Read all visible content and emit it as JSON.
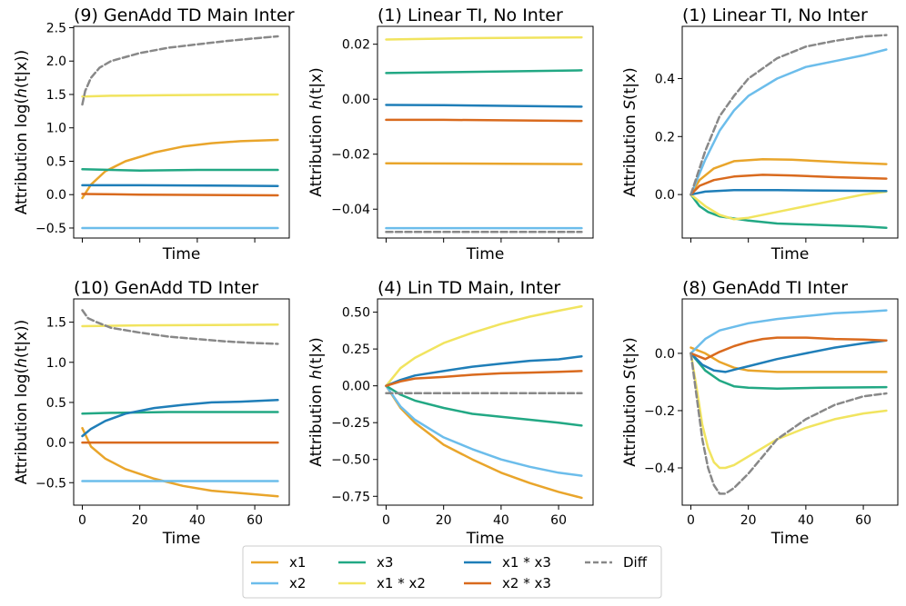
{
  "colors": {
    "x1": "#E9A52B",
    "x2": "#6CBDEB",
    "x3": "#22A884",
    "x1*x2": "#F1E45F",
    "x1*x3": "#1F7EB8",
    "x2*x3": "#D96A1E",
    "Diff": "#888888"
  },
  "legend": {
    "items": [
      {
        "key": "x1",
        "label": "x1",
        "dashed": false
      },
      {
        "key": "x2",
        "label": "x2",
        "dashed": false
      },
      {
        "key": "x3",
        "label": "x3",
        "dashed": false
      },
      {
        "key": "x1*x2",
        "label": "x1 * x2",
        "dashed": false
      },
      {
        "key": "x1*x3",
        "label": "x1 * x3",
        "dashed": false
      },
      {
        "key": "x2*x3",
        "label": "x2 * x3",
        "dashed": false
      },
      {
        "key": "Diff",
        "label": "Diff",
        "dashed": true
      }
    ]
  },
  "chart_data": [
    {
      "type": "line",
      "title": "(9) GenAdd TD Main Inter",
      "xlabel": "Time",
      "ylabel": "Attribution log(h(t|x))",
      "xlim": [
        -3,
        72
      ],
      "ylim": [
        -0.65,
        2.52
      ],
      "xticks": [
        0,
        20,
        40,
        60
      ],
      "show_xticklabels": false,
      "yticks": [
        -0.5,
        0.0,
        0.5,
        1.0,
        1.5,
        2.0,
        2.5
      ],
      "ytick_labels": [
        "−0.5",
        "0.0",
        "0.5",
        "1.0",
        "1.5",
        "2.0",
        "2.5"
      ],
      "series": [
        {
          "name": "x1",
          "x": [
            0,
            3,
            8,
            15,
            25,
            35,
            45,
            55,
            68
          ],
          "y": [
            -0.05,
            0.15,
            0.35,
            0.5,
            0.63,
            0.72,
            0.77,
            0.8,
            0.82
          ]
        },
        {
          "name": "x2",
          "x": [
            0,
            68
          ],
          "y": [
            -0.5,
            -0.5
          ]
        },
        {
          "name": "x3",
          "x": [
            0,
            10,
            20,
            40,
            68
          ],
          "y": [
            0.38,
            0.37,
            0.36,
            0.37,
            0.37
          ]
        },
        {
          "name": "x1*x2",
          "x": [
            0,
            10,
            30,
            68
          ],
          "y": [
            1.47,
            1.48,
            1.49,
            1.5
          ]
        },
        {
          "name": "x1*x3",
          "x": [
            0,
            20,
            68
          ],
          "y": [
            0.14,
            0.14,
            0.13
          ]
        },
        {
          "name": "x2*x3",
          "x": [
            0,
            20,
            68
          ],
          "y": [
            0.01,
            0.0,
            -0.01
          ]
        },
        {
          "name": "Diff",
          "x": [
            0,
            1,
            3,
            6,
            10,
            20,
            30,
            40,
            50,
            60,
            68
          ],
          "y": [
            1.35,
            1.55,
            1.75,
            1.9,
            2.0,
            2.12,
            2.2,
            2.25,
            2.3,
            2.34,
            2.37
          ]
        }
      ]
    },
    {
      "type": "line",
      "title": "(1) Linear TI, No Inter",
      "xlabel": "Time",
      "ylabel": "Attribution h(t|x)",
      "xlim": [
        -3,
        72
      ],
      "ylim": [
        -0.0505,
        0.0265
      ],
      "xticks": [
        0,
        20,
        40,
        60
      ],
      "show_xticklabels": false,
      "yticks": [
        -0.04,
        -0.02,
        0.0,
        0.02
      ],
      "ytick_labels": [
        "−0.04",
        "−0.02",
        "0.00",
        "0.02"
      ],
      "series": [
        {
          "name": "x1",
          "x": [
            0,
            68
          ],
          "y": [
            -0.0233,
            -0.0236
          ]
        },
        {
          "name": "x2",
          "x": [
            0,
            68
          ],
          "y": [
            -0.0469,
            -0.0469
          ]
        },
        {
          "name": "x3",
          "x": [
            0,
            20,
            68
          ],
          "y": [
            0.0095,
            0.0098,
            0.0105
          ]
        },
        {
          "name": "x1*x2",
          "x": [
            0,
            30,
            68
          ],
          "y": [
            0.0217,
            0.0222,
            0.0225
          ]
        },
        {
          "name": "x1*x3",
          "x": [
            0,
            20,
            68
          ],
          "y": [
            -0.0021,
            -0.0022,
            -0.0027
          ]
        },
        {
          "name": "x2*x3",
          "x": [
            0,
            20,
            68
          ],
          "y": [
            -0.0075,
            -0.0075,
            -0.0079
          ]
        },
        {
          "name": "Diff",
          "x": [
            0,
            68
          ],
          "y": [
            -0.0483,
            -0.0483
          ]
        }
      ]
    },
    {
      "type": "line",
      "title": "(1) Linear TI, No Inter",
      "xlabel": "Time",
      "ylabel": "Attribution S(t|x)",
      "xlim": [
        -3,
        72
      ],
      "ylim": [
        -0.15,
        0.58
      ],
      "xticks": [
        0,
        20,
        40,
        60
      ],
      "show_xticklabels": false,
      "yticks": [
        0.0,
        0.2,
        0.4
      ],
      "ytick_labels": [
        "0.0",
        "0.2",
        "0.4"
      ],
      "series": [
        {
          "name": "x1",
          "x": [
            0,
            3,
            8,
            15,
            25,
            35,
            45,
            55,
            68
          ],
          "y": [
            0.0,
            0.05,
            0.09,
            0.115,
            0.122,
            0.12,
            0.115,
            0.11,
            0.105
          ]
        },
        {
          "name": "x2",
          "x": [
            0,
            5,
            10,
            15,
            20,
            30,
            40,
            50,
            60,
            68
          ],
          "y": [
            0.0,
            0.12,
            0.22,
            0.29,
            0.34,
            0.4,
            0.44,
            0.46,
            0.48,
            0.5
          ]
        },
        {
          "name": "x3",
          "x": [
            0,
            3,
            6,
            10,
            20,
            30,
            45,
            60,
            68
          ],
          "y": [
            0.0,
            -0.04,
            -0.06,
            -0.075,
            -0.09,
            -0.1,
            -0.105,
            -0.11,
            -0.115
          ]
        },
        {
          "name": "x1*x2",
          "x": [
            0,
            5,
            10,
            15,
            20,
            30,
            45,
            60,
            68
          ],
          "y": [
            0.0,
            -0.04,
            -0.07,
            -0.085,
            -0.08,
            -0.06,
            -0.03,
            0.0,
            0.01
          ]
        },
        {
          "name": "x1*x3",
          "x": [
            0,
            5,
            15,
            30,
            68
          ],
          "y": [
            0.0,
            0.01,
            0.015,
            0.015,
            0.012
          ]
        },
        {
          "name": "x2*x3",
          "x": [
            0,
            3,
            8,
            15,
            25,
            35,
            50,
            68
          ],
          "y": [
            0.0,
            0.03,
            0.05,
            0.062,
            0.068,
            0.066,
            0.06,
            0.055
          ]
        },
        {
          "name": "Diff",
          "x": [
            0,
            5,
            10,
            15,
            20,
            30,
            40,
            50,
            60,
            68
          ],
          "y": [
            0.0,
            0.15,
            0.27,
            0.34,
            0.4,
            0.47,
            0.51,
            0.53,
            0.545,
            0.55
          ]
        }
      ]
    },
    {
      "type": "line",
      "title": "(10) GenAdd TD Inter",
      "xlabel": "Time",
      "ylabel": "Attribution log(h(t|x))",
      "xlim": [
        -3,
        72
      ],
      "ylim": [
        -0.78,
        1.79
      ],
      "xticks": [
        0,
        20,
        40,
        60
      ],
      "show_xticklabels": true,
      "xtick_labels": [
        "0",
        "20",
        "40",
        "60"
      ],
      "yticks": [
        -0.5,
        0.0,
        0.5,
        1.0,
        1.5
      ],
      "ytick_labels": [
        "−0.5",
        "0.0",
        "0.5",
        "1.0",
        "1.5"
      ],
      "series": [
        {
          "name": "x1",
          "x": [
            0,
            3,
            8,
            15,
            25,
            35,
            45,
            55,
            68
          ],
          "y": [
            0.18,
            -0.05,
            -0.2,
            -0.33,
            -0.45,
            -0.54,
            -0.6,
            -0.63,
            -0.67
          ]
        },
        {
          "name": "x2",
          "x": [
            0,
            68
          ],
          "y": [
            -0.48,
            -0.48
          ]
        },
        {
          "name": "x3",
          "x": [
            0,
            10,
            30,
            68
          ],
          "y": [
            0.36,
            0.37,
            0.38,
            0.38
          ]
        },
        {
          "name": "x1*x2",
          "x": [
            0,
            20,
            68
          ],
          "y": [
            1.45,
            1.46,
            1.47
          ]
        },
        {
          "name": "x1*x3",
          "x": [
            0,
            3,
            8,
            15,
            25,
            35,
            45,
            55,
            68
          ],
          "y": [
            0.08,
            0.17,
            0.27,
            0.36,
            0.43,
            0.47,
            0.5,
            0.51,
            0.53
          ]
        },
        {
          "name": "x2*x3",
          "x": [
            0,
            68
          ],
          "y": [
            0.0,
            0.0
          ]
        },
        {
          "name": "Diff",
          "x": [
            0,
            2,
            5,
            10,
            20,
            30,
            40,
            50,
            60,
            68
          ],
          "y": [
            1.65,
            1.55,
            1.5,
            1.43,
            1.37,
            1.32,
            1.29,
            1.26,
            1.24,
            1.23
          ]
        }
      ]
    },
    {
      "type": "line",
      "title": "(4) Lin TD Main, Inter",
      "xlabel": "Time",
      "ylabel": "Attribution h(t|x)",
      "xlim": [
        -3,
        72
      ],
      "ylim": [
        -0.81,
        0.59
      ],
      "xticks": [
        0,
        20,
        40,
        60
      ],
      "show_xticklabels": true,
      "xtick_labels": [
        "0",
        "20",
        "40",
        "60"
      ],
      "yticks": [
        -0.75,
        -0.5,
        -0.25,
        0.0,
        0.25,
        0.5
      ],
      "ytick_labels": [
        "−0.75",
        "−0.50",
        "−0.25",
        "0.00",
        "0.25",
        "0.50"
      ],
      "series": [
        {
          "name": "x1",
          "x": [
            0,
            5,
            10,
            20,
            30,
            40,
            50,
            60,
            68
          ],
          "y": [
            0.0,
            -0.15,
            -0.25,
            -0.4,
            -0.5,
            -0.59,
            -0.66,
            -0.72,
            -0.76
          ]
        },
        {
          "name": "x2",
          "x": [
            0,
            5,
            10,
            20,
            30,
            40,
            50,
            60,
            68
          ],
          "y": [
            0.0,
            -0.14,
            -0.23,
            -0.35,
            -0.43,
            -0.5,
            -0.55,
            -0.59,
            -0.61
          ]
        },
        {
          "name": "x3",
          "x": [
            0,
            5,
            10,
            20,
            30,
            40,
            50,
            60,
            68
          ],
          "y": [
            0.0,
            -0.06,
            -0.1,
            -0.15,
            -0.19,
            -0.21,
            -0.23,
            -0.25,
            -0.27
          ]
        },
        {
          "name": "x1*x2",
          "x": [
            0,
            5,
            10,
            20,
            30,
            40,
            50,
            60,
            68
          ],
          "y": [
            0.0,
            0.12,
            0.19,
            0.29,
            0.36,
            0.42,
            0.47,
            0.51,
            0.54
          ]
        },
        {
          "name": "x1*x3",
          "x": [
            0,
            5,
            10,
            20,
            30,
            40,
            50,
            60,
            68
          ],
          "y": [
            0.0,
            0.04,
            0.07,
            0.1,
            0.13,
            0.15,
            0.17,
            0.18,
            0.2
          ]
        },
        {
          "name": "x2*x3",
          "x": [
            0,
            5,
            10,
            20,
            30,
            40,
            50,
            60,
            68
          ],
          "y": [
            0.0,
            0.03,
            0.05,
            0.06,
            0.075,
            0.085,
            0.09,
            0.095,
            0.1
          ]
        },
        {
          "name": "Diff",
          "x": [
            0,
            68
          ],
          "y": [
            -0.05,
            -0.05
          ]
        }
      ]
    },
    {
      "type": "line",
      "title": "(8) GenAdd TI Inter",
      "xlabel": "Time",
      "ylabel": "Attribution S(t|x)",
      "xlim": [
        -3,
        72
      ],
      "ylim": [
        -0.53,
        0.19
      ],
      "xticks": [
        0,
        20,
        40,
        60
      ],
      "show_xticklabels": true,
      "xtick_labels": [
        "0",
        "20",
        "40",
        "60"
      ],
      "yticks": [
        -0.4,
        -0.2,
        0.0
      ],
      "ytick_labels": [
        "−0.4",
        "−0.2",
        "0.0"
      ],
      "series": [
        {
          "name": "x1",
          "x": [
            0,
            5,
            10,
            15,
            20,
            30,
            45,
            68
          ],
          "y": [
            0.02,
            0.0,
            -0.03,
            -0.05,
            -0.06,
            -0.065,
            -0.065,
            -0.065
          ]
        },
        {
          "name": "x2",
          "x": [
            0,
            5,
            10,
            20,
            30,
            40,
            50,
            60,
            68
          ],
          "y": [
            0.0,
            0.05,
            0.08,
            0.105,
            0.12,
            0.13,
            0.14,
            0.145,
            0.15
          ]
        },
        {
          "name": "x3",
          "x": [
            0,
            5,
            10,
            15,
            20,
            30,
            45,
            68
          ],
          "y": [
            0.0,
            -0.06,
            -0.095,
            -0.115,
            -0.12,
            -0.123,
            -0.12,
            -0.118
          ]
        },
        {
          "name": "x1*x2",
          "x": [
            0,
            2,
            4,
            6,
            8,
            10,
            12,
            15,
            20,
            25,
            30,
            40,
            50,
            60,
            68
          ],
          "y": [
            0.0,
            -0.12,
            -0.25,
            -0.33,
            -0.38,
            -0.4,
            -0.4,
            -0.39,
            -0.36,
            -0.33,
            -0.3,
            -0.26,
            -0.23,
            -0.21,
            -0.2
          ]
        },
        {
          "name": "x1*x3",
          "x": [
            0,
            4,
            8,
            12,
            16,
            20,
            30,
            40,
            50,
            60,
            68
          ],
          "y": [
            0.0,
            -0.04,
            -0.06,
            -0.065,
            -0.055,
            -0.045,
            -0.02,
            0.0,
            0.02,
            0.035,
            0.045
          ]
        },
        {
          "name": "x2*x3",
          "x": [
            0,
            5,
            10,
            15,
            20,
            25,
            30,
            40,
            50,
            60,
            68
          ],
          "y": [
            0.0,
            -0.02,
            0.005,
            0.025,
            0.04,
            0.05,
            0.055,
            0.055,
            0.05,
            0.048,
            0.045
          ]
        },
        {
          "name": "Diff",
          "x": [
            0,
            2,
            4,
            6,
            8,
            10,
            12,
            15,
            20,
            25,
            30,
            40,
            50,
            60,
            68
          ],
          "y": [
            0.0,
            -0.15,
            -0.3,
            -0.4,
            -0.46,
            -0.49,
            -0.49,
            -0.47,
            -0.42,
            -0.36,
            -0.3,
            -0.23,
            -0.18,
            -0.15,
            -0.14
          ]
        }
      ]
    }
  ]
}
